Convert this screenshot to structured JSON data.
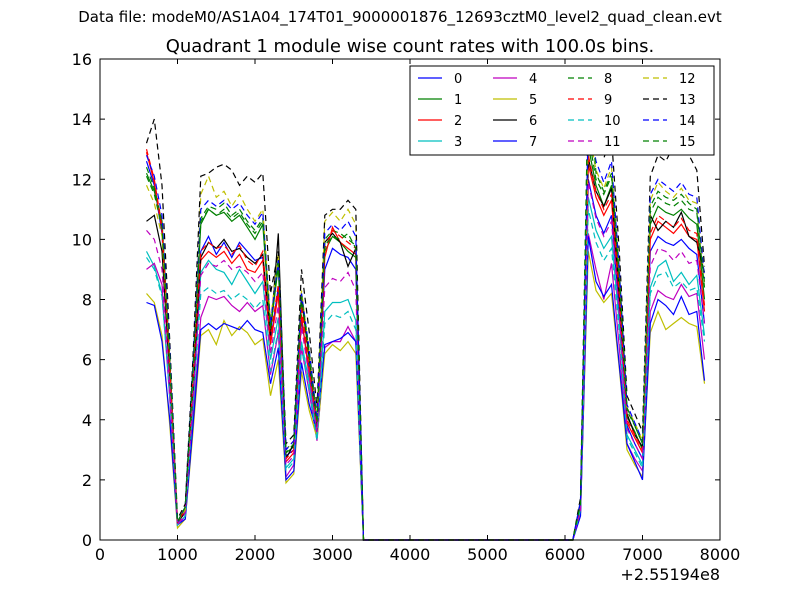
{
  "suptitle": "Data file: modeM0/AS1A04_174T01_9000001876_12693cztM0_level2_quad_clean.evt",
  "chart_data": {
    "type": "line",
    "title": "Quadrant 1 module wise count rates with 100.0s bins.",
    "xlabel": "",
    "ylabel": "",
    "x_offset_label": "+2.55194e8",
    "xlim": [
      0,
      8000
    ],
    "ylim": [
      0,
      16
    ],
    "xticks": [
      0,
      1000,
      2000,
      3000,
      4000,
      5000,
      6000,
      7000,
      8000
    ],
    "yticks": [
      0,
      2,
      4,
      6,
      8,
      10,
      12,
      14,
      16
    ],
    "grid": false,
    "legend_position": "top-right",
    "legend_columns": 4,
    "x": [
      600,
      700,
      800,
      900,
      1000,
      1100,
      1200,
      1300,
      1400,
      1500,
      1600,
      1700,
      1800,
      1900,
      2000,
      2100,
      2200,
      2300,
      2400,
      2500,
      2600,
      2700,
      2800,
      2900,
      3000,
      3100,
      3200,
      3300,
      3400,
      3500,
      6100,
      6200,
      6300,
      6400,
      6500,
      6600,
      6700,
      6800,
      6900,
      7000,
      7100,
      7200,
      7300,
      7400,
      7500,
      7600,
      7700,
      7800
    ],
    "series": [
      {
        "name": "0",
        "color": "#0000ff",
        "dash": "solid",
        "values": [
          12.6,
          11.8,
          10.2,
          5.5,
          0.5,
          1.0,
          5.2,
          9.6,
          10.1,
          9.5,
          9.9,
          9.4,
          9.9,
          9.6,
          9.3,
          9.4,
          6.6,
          8.4,
          2.8,
          3.0,
          7.3,
          5.7,
          3.6,
          9.0,
          9.7,
          9.5,
          9.4,
          9.0,
          0.0,
          0.0,
          0.0,
          1.1,
          12.0,
          10.8,
          10.2,
          10.8,
          7.6,
          3.8,
          3.2,
          2.7,
          9.6,
          10.1,
          9.9,
          9.8,
          10.0,
          9.7,
          9.5,
          7.2
        ]
      },
      {
        "name": "1",
        "color": "#008000",
        "dash": "solid",
        "values": [
          12.2,
          11.6,
          10.6,
          6.0,
          0.6,
          1.1,
          5.6,
          10.5,
          11.0,
          10.8,
          10.9,
          10.6,
          10.8,
          10.4,
          10.0,
          10.5,
          7.0,
          9.1,
          2.9,
          3.1,
          8.0,
          6.0,
          3.8,
          9.6,
          10.1,
          9.9,
          9.6,
          9.4,
          0.0,
          0.0,
          0.0,
          1.2,
          13.1,
          11.8,
          11.1,
          11.8,
          8.4,
          4.1,
          3.6,
          3.0,
          10.5,
          11.1,
          10.9,
          10.8,
          11.0,
          10.7,
          10.5,
          8.0
        ]
      },
      {
        "name": "2",
        "color": "#ff0000",
        "dash": "solid",
        "values": [
          12.9,
          11.9,
          10.3,
          5.6,
          0.6,
          1.0,
          5.3,
          9.3,
          9.6,
          9.4,
          9.6,
          9.2,
          9.5,
          9.0,
          8.9,
          9.3,
          6.5,
          8.2,
          2.6,
          2.9,
          7.5,
          5.4,
          3.5,
          9.4,
          10.4,
          9.9,
          9.7,
          9.5,
          0.0,
          0.0,
          0.0,
          1.1,
          12.5,
          11.4,
          10.8,
          11.3,
          8.0,
          3.9,
          3.4,
          2.9,
          10.0,
          10.6,
          10.4,
          10.2,
          10.5,
          10.1,
          10.0,
          7.6
        ]
      },
      {
        "name": "3",
        "color": "#00bfbf",
        "dash": "solid",
        "values": [
          9.6,
          9.1,
          8.2,
          4.7,
          0.5,
          0.8,
          4.3,
          8.9,
          9.3,
          9.0,
          8.9,
          8.5,
          9.0,
          8.6,
          8.2,
          8.6,
          6.0,
          7.4,
          2.4,
          2.7,
          6.6,
          5.2,
          3.4,
          7.6,
          7.9,
          7.9,
          8.0,
          7.3,
          0.0,
          0.0,
          0.0,
          1.0,
          11.4,
          10.3,
          9.7,
          10.1,
          7.2,
          3.5,
          3.0,
          2.5,
          8.4,
          9.1,
          9.3,
          8.6,
          8.9,
          8.5,
          8.8,
          6.8
        ]
      },
      {
        "name": "4",
        "color": "#bf00bf",
        "dash": "solid",
        "values": [
          9.0,
          9.2,
          8.5,
          4.7,
          0.5,
          0.8,
          4.0,
          7.4,
          8.1,
          8.0,
          8.1,
          7.8,
          7.6,
          7.9,
          7.6,
          7.8,
          5.5,
          6.9,
          2.1,
          2.5,
          6.4,
          4.9,
          3.3,
          6.4,
          6.6,
          6.6,
          7.1,
          6.6,
          0.0,
          0.0,
          0.0,
          0.9,
          10.2,
          9.0,
          8.0,
          9.2,
          6.4,
          3.2,
          2.7,
          2.3,
          7.6,
          8.3,
          8.1,
          8.0,
          8.5,
          8.1,
          8.2,
          6.0
        ]
      },
      {
        "name": "5",
        "color": "#bfbf00",
        "dash": "solid",
        "values": [
          8.2,
          7.9,
          6.8,
          3.8,
          0.4,
          0.7,
          3.6,
          6.8,
          7.0,
          6.5,
          7.3,
          6.8,
          7.1,
          6.9,
          6.5,
          6.7,
          4.8,
          6.0,
          1.9,
          2.2,
          5.6,
          4.3,
          3.4,
          6.2,
          6.5,
          6.3,
          6.6,
          6.2,
          0.0,
          0.0,
          0.0,
          0.9,
          9.6,
          8.3,
          7.9,
          8.2,
          5.7,
          3.0,
          2.5,
          2.1,
          6.9,
          7.6,
          7.0,
          7.2,
          7.4,
          7.2,
          7.1,
          5.2
        ]
      },
      {
        "name": "6",
        "color": "#000000",
        "dash": "solid",
        "values": [
          10.6,
          10.8,
          9.6,
          5.4,
          0.6,
          0.9,
          4.9,
          9.4,
          9.9,
          9.7,
          10.0,
          9.6,
          9.7,
          9.4,
          9.2,
          9.5,
          6.8,
          10.2,
          2.7,
          3.2,
          8.1,
          6.1,
          3.9,
          9.9,
          10.2,
          9.9,
          9.1,
          9.7,
          0.0,
          0.0,
          0.0,
          1.2,
          12.7,
          11.6,
          11.1,
          11.7,
          8.1,
          4.2,
          3.5,
          3.1,
          10.8,
          10.3,
          10.6,
          10.4,
          10.9,
          10.1,
          9.9,
          8.9
        ]
      },
      {
        "name": "7",
        "color": "#0000ff",
        "dash": "solid",
        "values": [
          7.9,
          7.8,
          6.6,
          4.0,
          0.5,
          0.7,
          3.8,
          7.0,
          7.2,
          7.0,
          7.2,
          7.1,
          7.0,
          7.3,
          7.0,
          6.9,
          5.2,
          6.4,
          2.0,
          2.3,
          5.9,
          4.5,
          3.6,
          6.5,
          6.6,
          6.7,
          6.9,
          6.6,
          0.0,
          0.0,
          0.0,
          0.8,
          10.1,
          8.6,
          8.1,
          8.5,
          5.8,
          3.2,
          2.6,
          2.0,
          7.2,
          8.0,
          7.8,
          7.5,
          8.1,
          7.5,
          7.6,
          5.3
        ]
      },
      {
        "name": "8",
        "color": "#008000",
        "dash": "dashed",
        "values": [
          12.4,
          11.7,
          10.6,
          6.2,
          0.6,
          1.1,
          5.7,
          10.7,
          11.1,
          11.0,
          11.2,
          10.8,
          11.0,
          10.6,
          10.3,
          10.7,
          7.1,
          9.4,
          3.0,
          3.3,
          8.2,
          6.3,
          4.0,
          10.0,
          10.3,
          10.2,
          10.0,
          9.8,
          0.0,
          0.0,
          0.0,
          1.3,
          13.5,
          12.0,
          11.5,
          12.1,
          8.7,
          4.3,
          3.8,
          3.2,
          10.9,
          11.4,
          11.2,
          11.1,
          11.3,
          11.0,
          10.9,
          8.4
        ]
      },
      {
        "name": "9",
        "color": "#ff0000",
        "dash": "dashed",
        "values": [
          13.0,
          12.0,
          10.4,
          5.8,
          0.6,
          1.0,
          5.4,
          9.6,
          9.9,
          9.7,
          9.8,
          9.5,
          9.8,
          9.3,
          9.1,
          9.6,
          6.7,
          8.5,
          2.7,
          3.0,
          7.8,
          5.7,
          3.7,
          9.7,
          10.3,
          10.1,
          9.9,
          9.7,
          0.0,
          0.0,
          0.0,
          1.1,
          12.8,
          11.6,
          11.0,
          11.5,
          8.2,
          4.0,
          3.5,
          3.0,
          10.2,
          10.8,
          10.6,
          10.4,
          10.7,
          10.3,
          10.2,
          7.8
        ]
      },
      {
        "name": "10",
        "color": "#00bfbf",
        "dash": "dashed",
        "values": [
          9.4,
          9.0,
          8.1,
          4.8,
          0.5,
          0.8,
          4.4,
          8.2,
          8.4,
          8.2,
          8.3,
          8.0,
          8.2,
          8.0,
          7.7,
          8.0,
          5.6,
          7.0,
          2.3,
          2.6,
          6.4,
          5.0,
          3.3,
          7.2,
          7.5,
          7.4,
          7.6,
          7.0,
          0.0,
          0.0,
          0.0,
          1.0,
          11.0,
          9.9,
          9.3,
          9.7,
          6.9,
          3.4,
          2.9,
          2.4,
          8.2,
          8.8,
          8.9,
          8.4,
          8.6,
          8.3,
          8.4,
          6.6
        ]
      },
      {
        "name": "11",
        "color": "#bf00bf",
        "dash": "dashed",
        "values": [
          10.3,
          10.0,
          9.0,
          5.1,
          0.5,
          0.9,
          4.7,
          8.8,
          9.2,
          9.1,
          9.3,
          9.0,
          9.1,
          8.9,
          8.6,
          8.9,
          6.2,
          7.8,
          2.5,
          2.8,
          7.1,
          5.4,
          3.6,
          8.4,
          8.7,
          8.6,
          8.9,
          8.3,
          0.0,
          0.0,
          0.0,
          1.0,
          11.9,
          10.7,
          10.1,
          10.6,
          7.5,
          3.7,
          3.2,
          2.7,
          9.1,
          9.7,
          9.6,
          9.3,
          9.6,
          9.2,
          9.3,
          7.2
        ]
      },
      {
        "name": "12",
        "color": "#bfbf00",
        "dash": "dashed",
        "values": [
          11.8,
          11.2,
          10.1,
          5.9,
          0.6,
          1.0,
          5.4,
          11.5,
          12.1,
          11.4,
          11.6,
          11.1,
          11.5,
          11.0,
          10.6,
          11.0,
          7.3,
          9.5,
          3.0,
          3.3,
          8.3,
          6.2,
          4.0,
          10.6,
          10.9,
          10.6,
          11.0,
          10.5,
          0.0,
          0.0,
          0.0,
          1.3,
          13.7,
          12.3,
          11.7,
          12.4,
          8.9,
          4.4,
          3.9,
          3.3,
          11.3,
          11.9,
          11.6,
          11.4,
          11.7,
          11.3,
          11.2,
          8.6
        ]
      },
      {
        "name": "13",
        "color": "#000000",
        "dash": "dashed",
        "values": [
          13.2,
          14.0,
          11.8,
          6.6,
          0.7,
          1.2,
          6.1,
          12.1,
          12.2,
          12.4,
          12.5,
          12.3,
          11.8,
          12.1,
          11.9,
          12.2,
          8.2,
          9.6,
          3.2,
          3.5,
          9.0,
          6.9,
          4.4,
          10.8,
          11.0,
          11.0,
          11.3,
          11.0,
          0.0,
          0.0,
          0.0,
          1.4,
          15.2,
          13.6,
          12.7,
          13.4,
          9.6,
          4.8,
          4.2,
          3.6,
          12.1,
          12.8,
          12.6,
          13.1,
          13.2,
          12.8,
          12.3,
          9.1
        ]
      },
      {
        "name": "14",
        "color": "#0000ff",
        "dash": "dashed",
        "values": [
          12.8,
          12.1,
          10.8,
          6.3,
          0.6,
          1.1,
          5.8,
          11.0,
          11.3,
          11.1,
          11.3,
          11.0,
          11.2,
          10.8,
          10.5,
          10.9,
          7.2,
          9.3,
          3.0,
          3.3,
          8.2,
          6.3,
          4.0,
          10.2,
          10.5,
          10.3,
          10.6,
          10.1,
          0.0,
          0.0,
          0.0,
          1.3,
          14.0,
          12.6,
          11.9,
          12.6,
          9.0,
          4.5,
          3.9,
          3.3,
          11.5,
          12.0,
          11.8,
          11.6,
          11.9,
          11.5,
          11.4,
          8.7
        ]
      },
      {
        "name": "15",
        "color": "#008000",
        "dash": "dashed",
        "values": [
          12.1,
          11.5,
          10.4,
          6.1,
          0.6,
          1.1,
          5.6,
          10.6,
          11.0,
          10.8,
          11.0,
          10.7,
          10.9,
          10.5,
          10.2,
          10.6,
          7.0,
          9.2,
          2.9,
          3.2,
          8.1,
          6.2,
          3.9,
          9.8,
          10.1,
          10.0,
          10.2,
          9.7,
          0.0,
          0.0,
          0.0,
          1.2,
          15.4,
          12.2,
          11.6,
          12.2,
          8.8,
          4.4,
          3.8,
          3.2,
          11.1,
          11.6,
          11.4,
          11.3,
          11.5,
          11.2,
          11.0,
          8.5
        ]
      }
    ]
  }
}
